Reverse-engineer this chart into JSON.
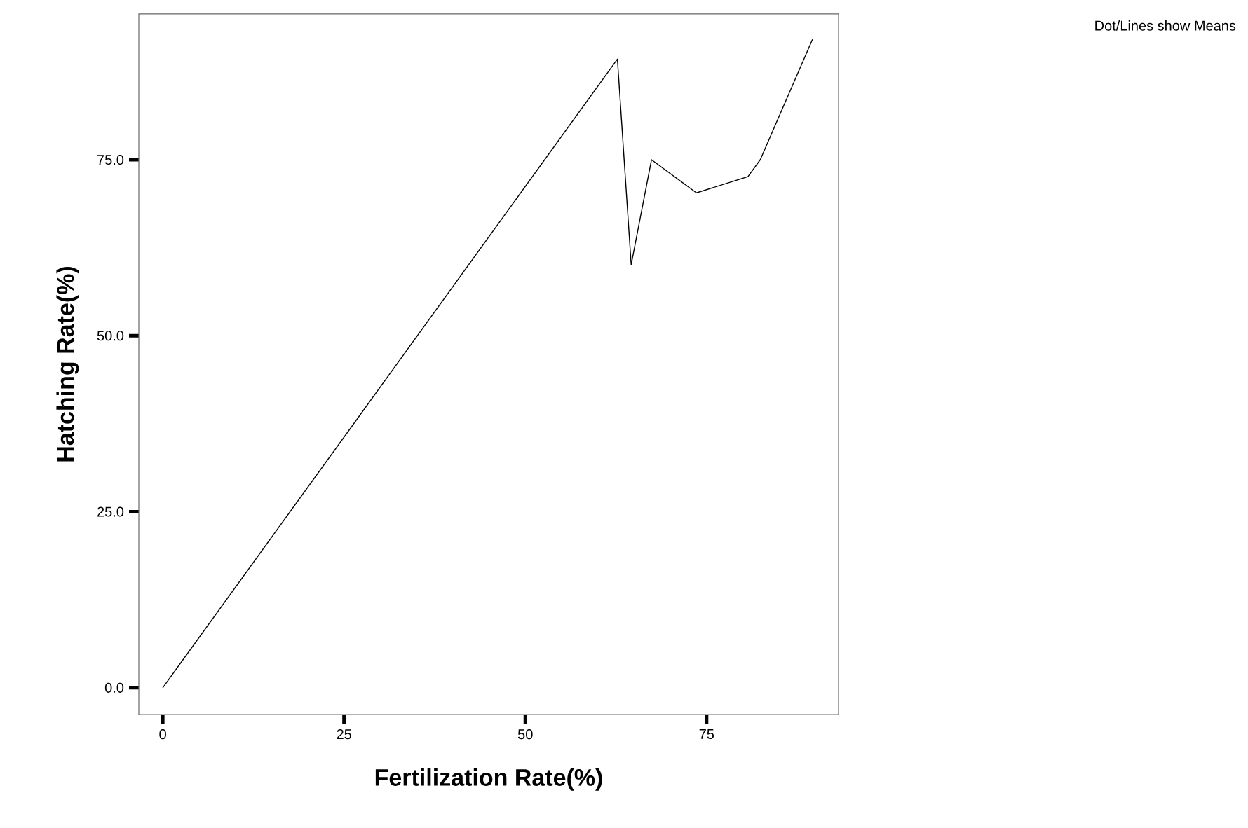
{
  "chart_data": {
    "type": "line",
    "xlabel": "Fertilization Rate(%)",
    "ylabel": "Hatching Rate(%)",
    "annotations": [
      "Dot/Lines show Means"
    ],
    "x": [
      0,
      62.7,
      64.6,
      67.4,
      73.6,
      80.7,
      82.4,
      89.6
    ],
    "values": [
      0,
      89.3,
      60.1,
      75.0,
      70.3,
      72.6,
      75.0,
      92.1
    ],
    "color": "#000000",
    "xlim": [
      -3.3,
      93.2
    ],
    "ylim": [
      -3.8,
      95.7
    ],
    "xticks": [
      0,
      25,
      50,
      75
    ],
    "yticks": [
      {
        "value": 0,
        "label": "0.0"
      },
      {
        "value": 25,
        "label": "25.0"
      },
      {
        "value": 50,
        "label": "50.0"
      },
      {
        "value": 75,
        "label": "75.0"
      }
    ]
  }
}
